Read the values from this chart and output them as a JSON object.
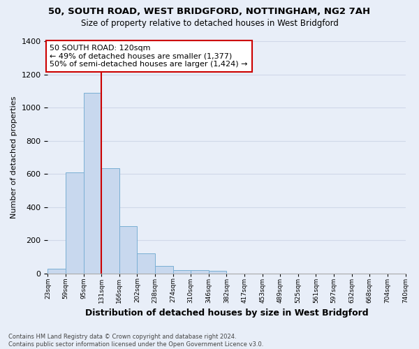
{
  "title_line1": "50, SOUTH ROAD, WEST BRIDGFORD, NOTTINGHAM, NG2 7AH",
  "title_line2": "Size of property relative to detached houses in West Bridgford",
  "xlabel": "Distribution of detached houses by size in West Bridgford",
  "ylabel": "Number of detached properties",
  "footnote": "Contains HM Land Registry data © Crown copyright and database right 2024.\nContains public sector information licensed under the Open Government Licence v3.0.",
  "bin_labels": [
    "23sqm",
    "59sqm",
    "95sqm",
    "131sqm",
    "166sqm",
    "202sqm",
    "238sqm",
    "274sqm",
    "310sqm",
    "346sqm",
    "382sqm",
    "417sqm",
    "453sqm",
    "489sqm",
    "525sqm",
    "561sqm",
    "597sqm",
    "632sqm",
    "668sqm",
    "704sqm",
    "740sqm"
  ],
  "bar_values": [
    30,
    610,
    1090,
    635,
    285,
    120,
    47,
    22,
    20,
    15,
    0,
    0,
    0,
    0,
    0,
    0,
    0,
    0,
    0,
    0
  ],
  "bar_color": "#c8d8ee",
  "bar_edge_color": "#7aafd4",
  "grid_color": "#d0d8e8",
  "bg_color": "#e8eef8",
  "vline_color": "#cc0000",
  "annotation_text": "50 SOUTH ROAD: 120sqm\n← 49% of detached houses are smaller (1,377)\n50% of semi-detached houses are larger (1,424) →",
  "annotation_box_edgecolor": "#cc0000",
  "ylim": [
    0,
    1400
  ],
  "yticks": [
    0,
    200,
    400,
    600,
    800,
    1000,
    1200,
    1400
  ],
  "vline_pos": 3.0
}
